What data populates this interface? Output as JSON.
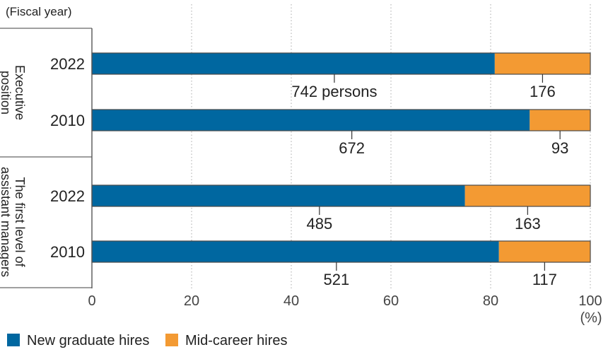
{
  "chart_data": {
    "type": "bar",
    "orientation": "horizontal",
    "stacked": "100%",
    "axis_caption": "(Fiscal year)",
    "xunit": "(%)",
    "xlim": [
      0,
      100
    ],
    "xticks": [
      "0",
      "20",
      "40",
      "60",
      "80",
      "100"
    ],
    "grid": "vertical dotted",
    "legend_position": "bottom-left",
    "series": [
      {
        "name": "New graduate hires",
        "color": "#0067a0"
      },
      {
        "name": "Mid-career hires",
        "color": "#f39a33"
      }
    ],
    "groups": [
      {
        "label_lines": [
          "Executive",
          "position"
        ],
        "bars": [
          {
            "year": "2022",
            "new_grad": 742,
            "mid_career": 176,
            "new_grad_label": "742 persons",
            "mid_career_label": "176"
          },
          {
            "year": "2010",
            "new_grad": 672,
            "mid_career": 93,
            "new_grad_label": "672",
            "mid_career_label": "93"
          }
        ]
      },
      {
        "label_lines": [
          "The first level of",
          "assistant managers"
        ],
        "bars": [
          {
            "year": "2022",
            "new_grad": 485,
            "mid_career": 163,
            "new_grad_label": "485",
            "mid_career_label": "163"
          },
          {
            "year": "2010",
            "new_grad": 521,
            "mid_career": 117,
            "new_grad_label": "521",
            "mid_career_label": "117"
          }
        ]
      }
    ]
  }
}
